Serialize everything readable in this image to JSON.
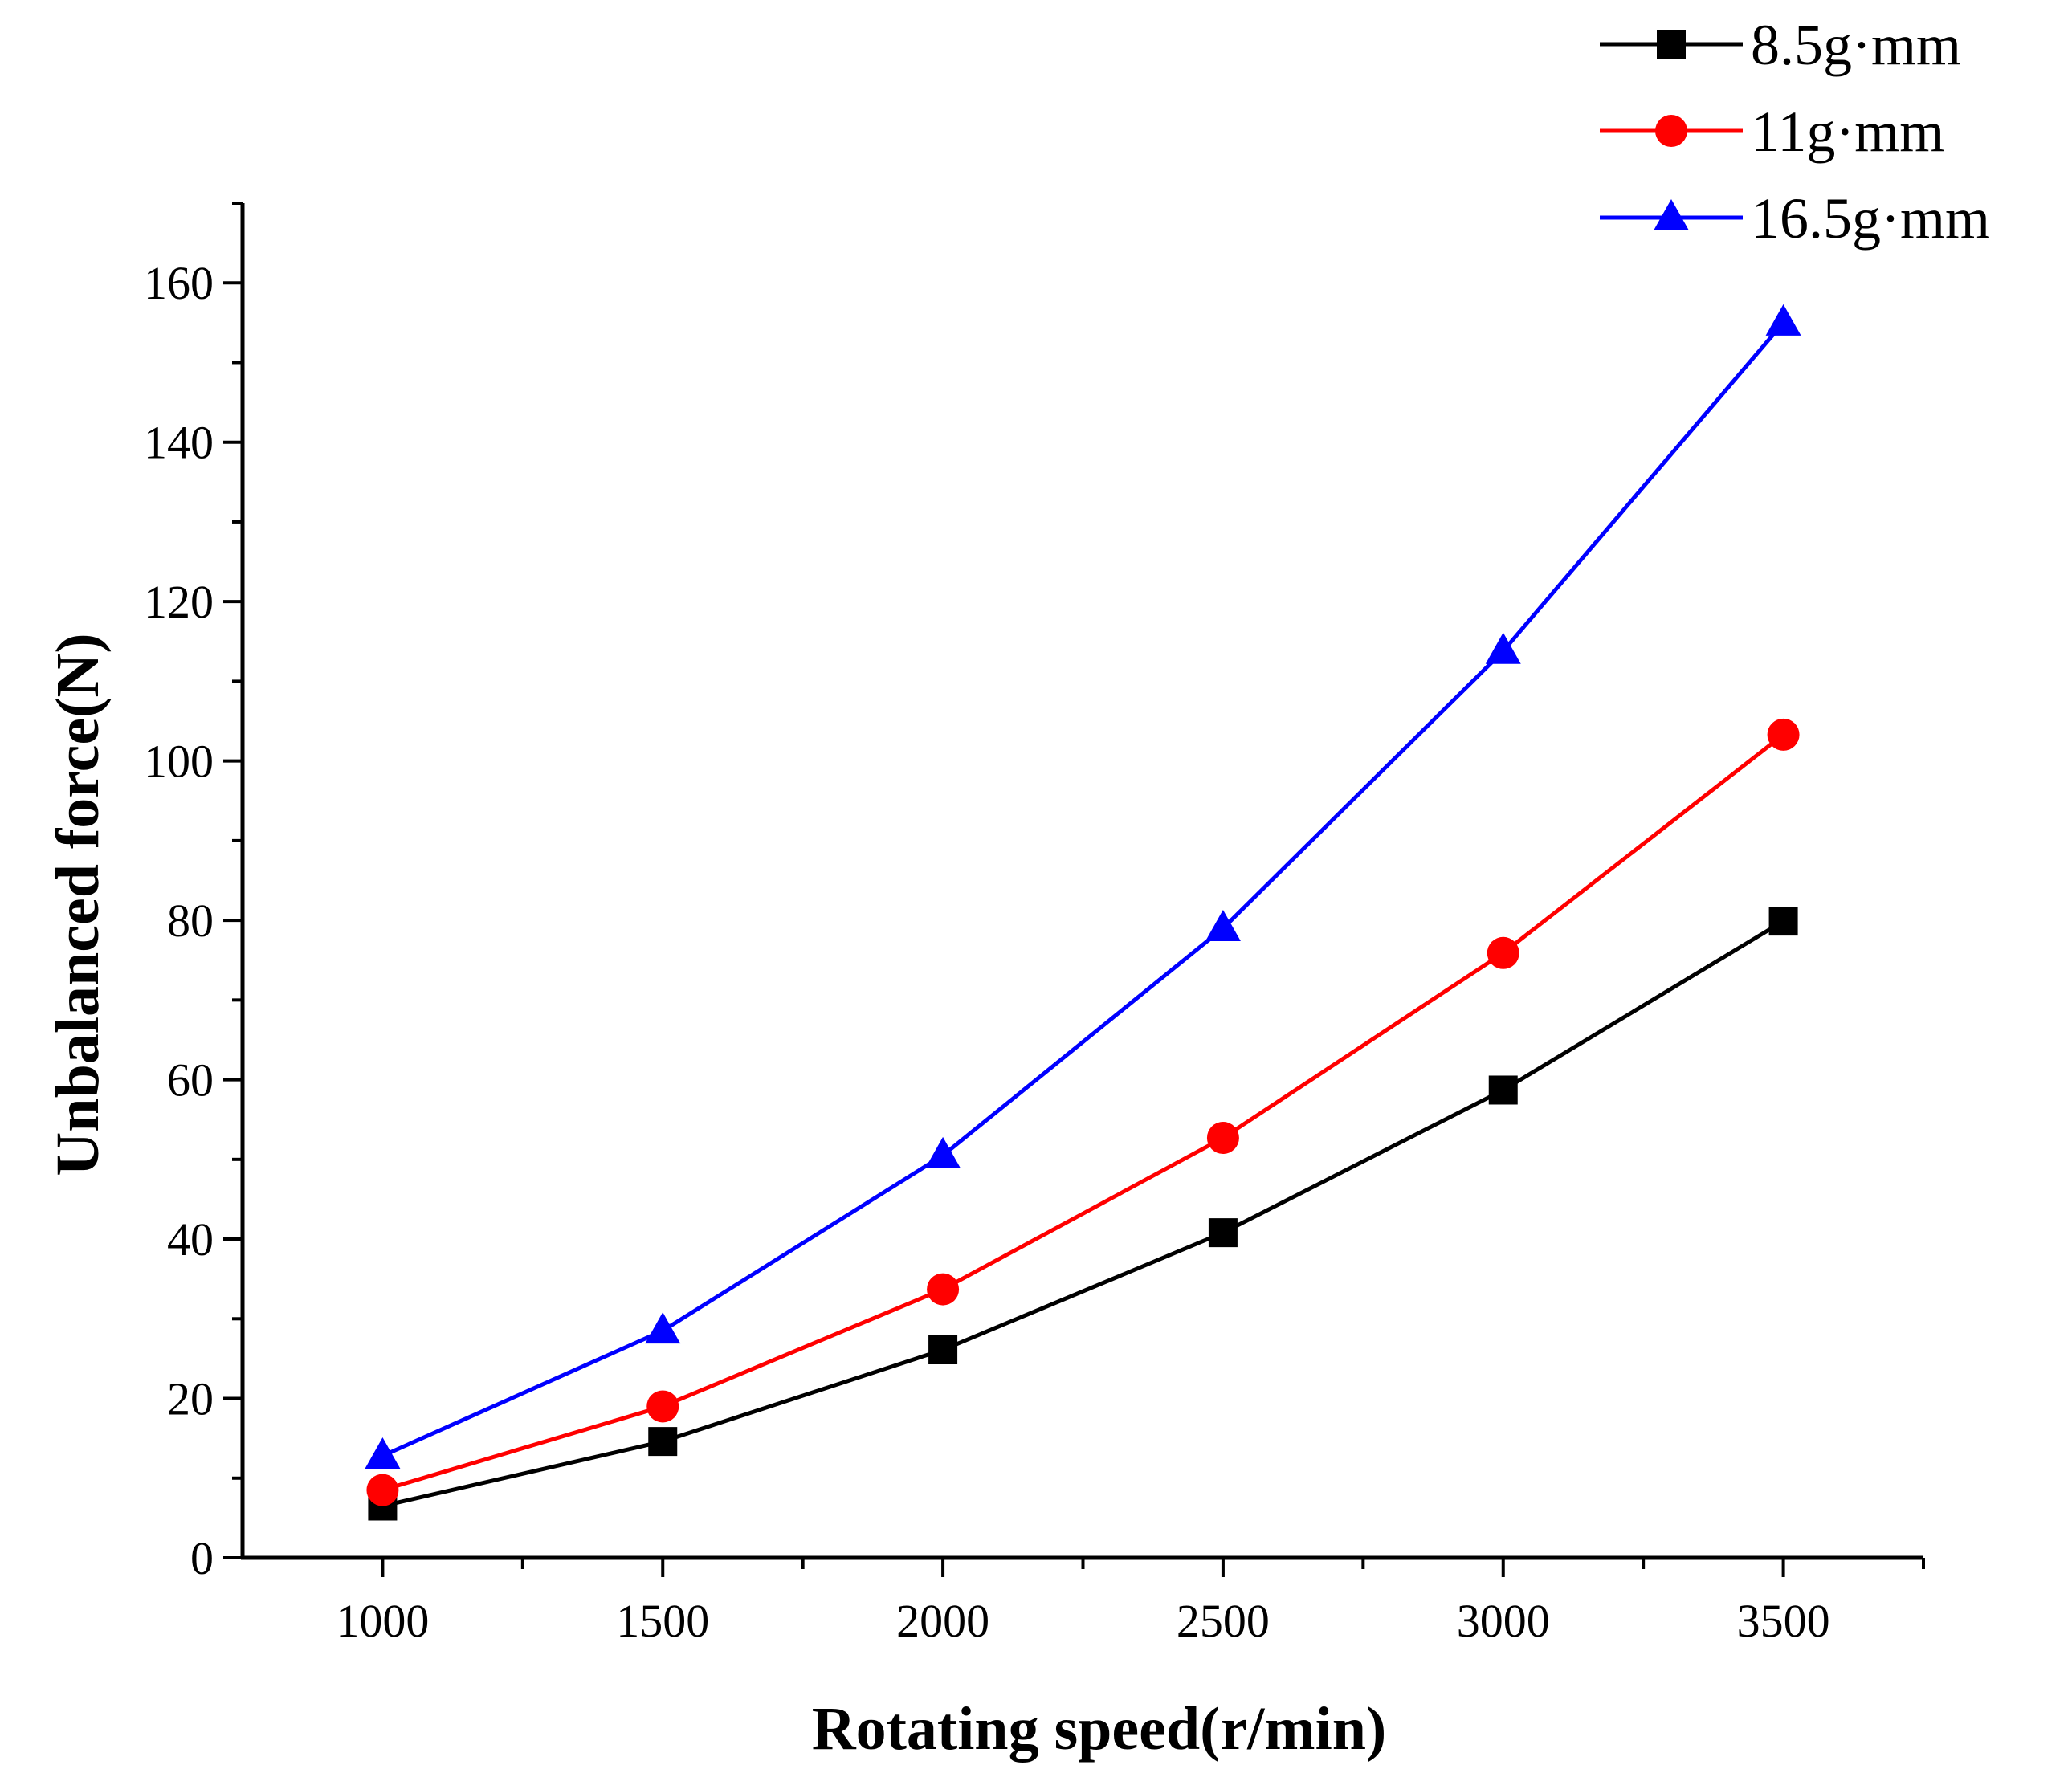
{
  "chart_data": {
    "type": "line",
    "title": "",
    "xlabel": "Rotating speed(r/min)",
    "ylabel": "Unbalanced force(N)",
    "x": [
      1000,
      1500,
      2000,
      2500,
      3000,
      3500
    ],
    "xlim": [
      750,
      3750
    ],
    "ylim": [
      0,
      170
    ],
    "xticks": [
      1000,
      1500,
      2000,
      2500,
      3000,
      3500
    ],
    "yticks": [
      0,
      20,
      40,
      60,
      80,
      100,
      120,
      140,
      160
    ],
    "grid": false,
    "legend_position": "top-right",
    "series": [
      {
        "name": "8.5g·mm",
        "color": "#000000",
        "marker": "square",
        "values": [
          6.5,
          14.6,
          26.1,
          40.8,
          58.7,
          79.9
        ]
      },
      {
        "name": "11g·mm",
        "color": "#ff0000",
        "marker": "circle",
        "values": [
          8.5,
          19.0,
          33.7,
          52.7,
          75.9,
          103.3
        ]
      },
      {
        "name": "16.5g·mm",
        "color": "#0000ff",
        "marker": "triangle",
        "values": [
          12.8,
          28.5,
          50.5,
          79.0,
          113.8,
          155.0
        ]
      }
    ]
  }
}
